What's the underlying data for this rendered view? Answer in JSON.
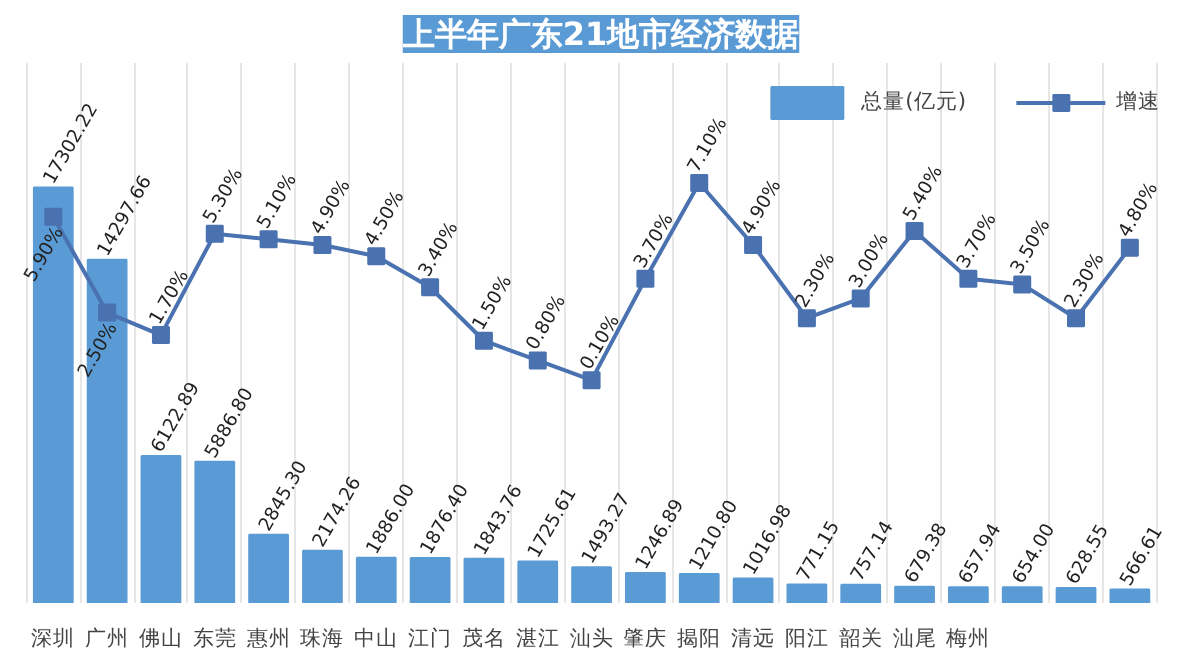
{
  "chart_data": {
    "type": "bar",
    "title": "上半年广东21地市经济数据",
    "categories": [
      "深圳",
      "广州",
      "佛山",
      "东莞",
      "惠州",
      "珠海",
      "中山",
      "江门",
      "茂名",
      "湛江",
      "汕头",
      "肇庆",
      "揭阳",
      "清远",
      "阳江",
      "韶关",
      "汕尾",
      "梅州",
      null,
      null,
      null
    ],
    "series": [
      {
        "name": "总量(亿元)",
        "color": "#5b9bd5",
        "values": [
          17302.22,
          14297.66,
          6122.89,
          5886.8,
          2845.3,
          2174.26,
          1886.0,
          1876.4,
          1843.76,
          1725.61,
          1493.27,
          1246.89,
          1210.8,
          1016.98,
          771.15,
          757.14,
          679.38,
          657.94,
          654.0,
          628.55,
          566.61
        ],
        "value_labels": [
          "17302.22",
          "14297.66",
          "6122.89",
          "5886.80",
          "2845.30",
          "2174.26",
          "1886.00",
          "1876.40",
          "1843.76",
          "1725.61",
          "1493.27",
          "1246.89",
          "1210.80",
          "1016.98",
          "771.15",
          "757.14",
          "679.38",
          "657.94",
          "654.00",
          "628.55",
          "566.61"
        ]
      },
      {
        "name": "增速",
        "type": "line",
        "axis": "y2",
        "color": "#4a72b0",
        "values": [
          5.9,
          2.5,
          1.7,
          5.3,
          5.1,
          4.9,
          4.5,
          3.4,
          1.5,
          0.8,
          0.1,
          3.7,
          7.1,
          4.9,
          2.3,
          3.0,
          5.4,
          3.7,
          3.5,
          2.3,
          4.8
        ],
        "value_labels": [
          "5.90%",
          "2.50%",
          "1.70%",
          "5.30%",
          "5.10%",
          "4.90%",
          "4.50%",
          "3.40%",
          "1.50%",
          "0.80%",
          "0.10%",
          "3.70%",
          "7.10%",
          "4.90%",
          "2.30%",
          "3.00%",
          "5.40%",
          "3.70%",
          "3.50%",
          "2.30%",
          "4.80%"
        ]
      }
    ],
    "marker": "square",
    "line_style": "solid",
    "legend": "top right",
    "grid": "x",
    "tick_labels": "x"
  }
}
